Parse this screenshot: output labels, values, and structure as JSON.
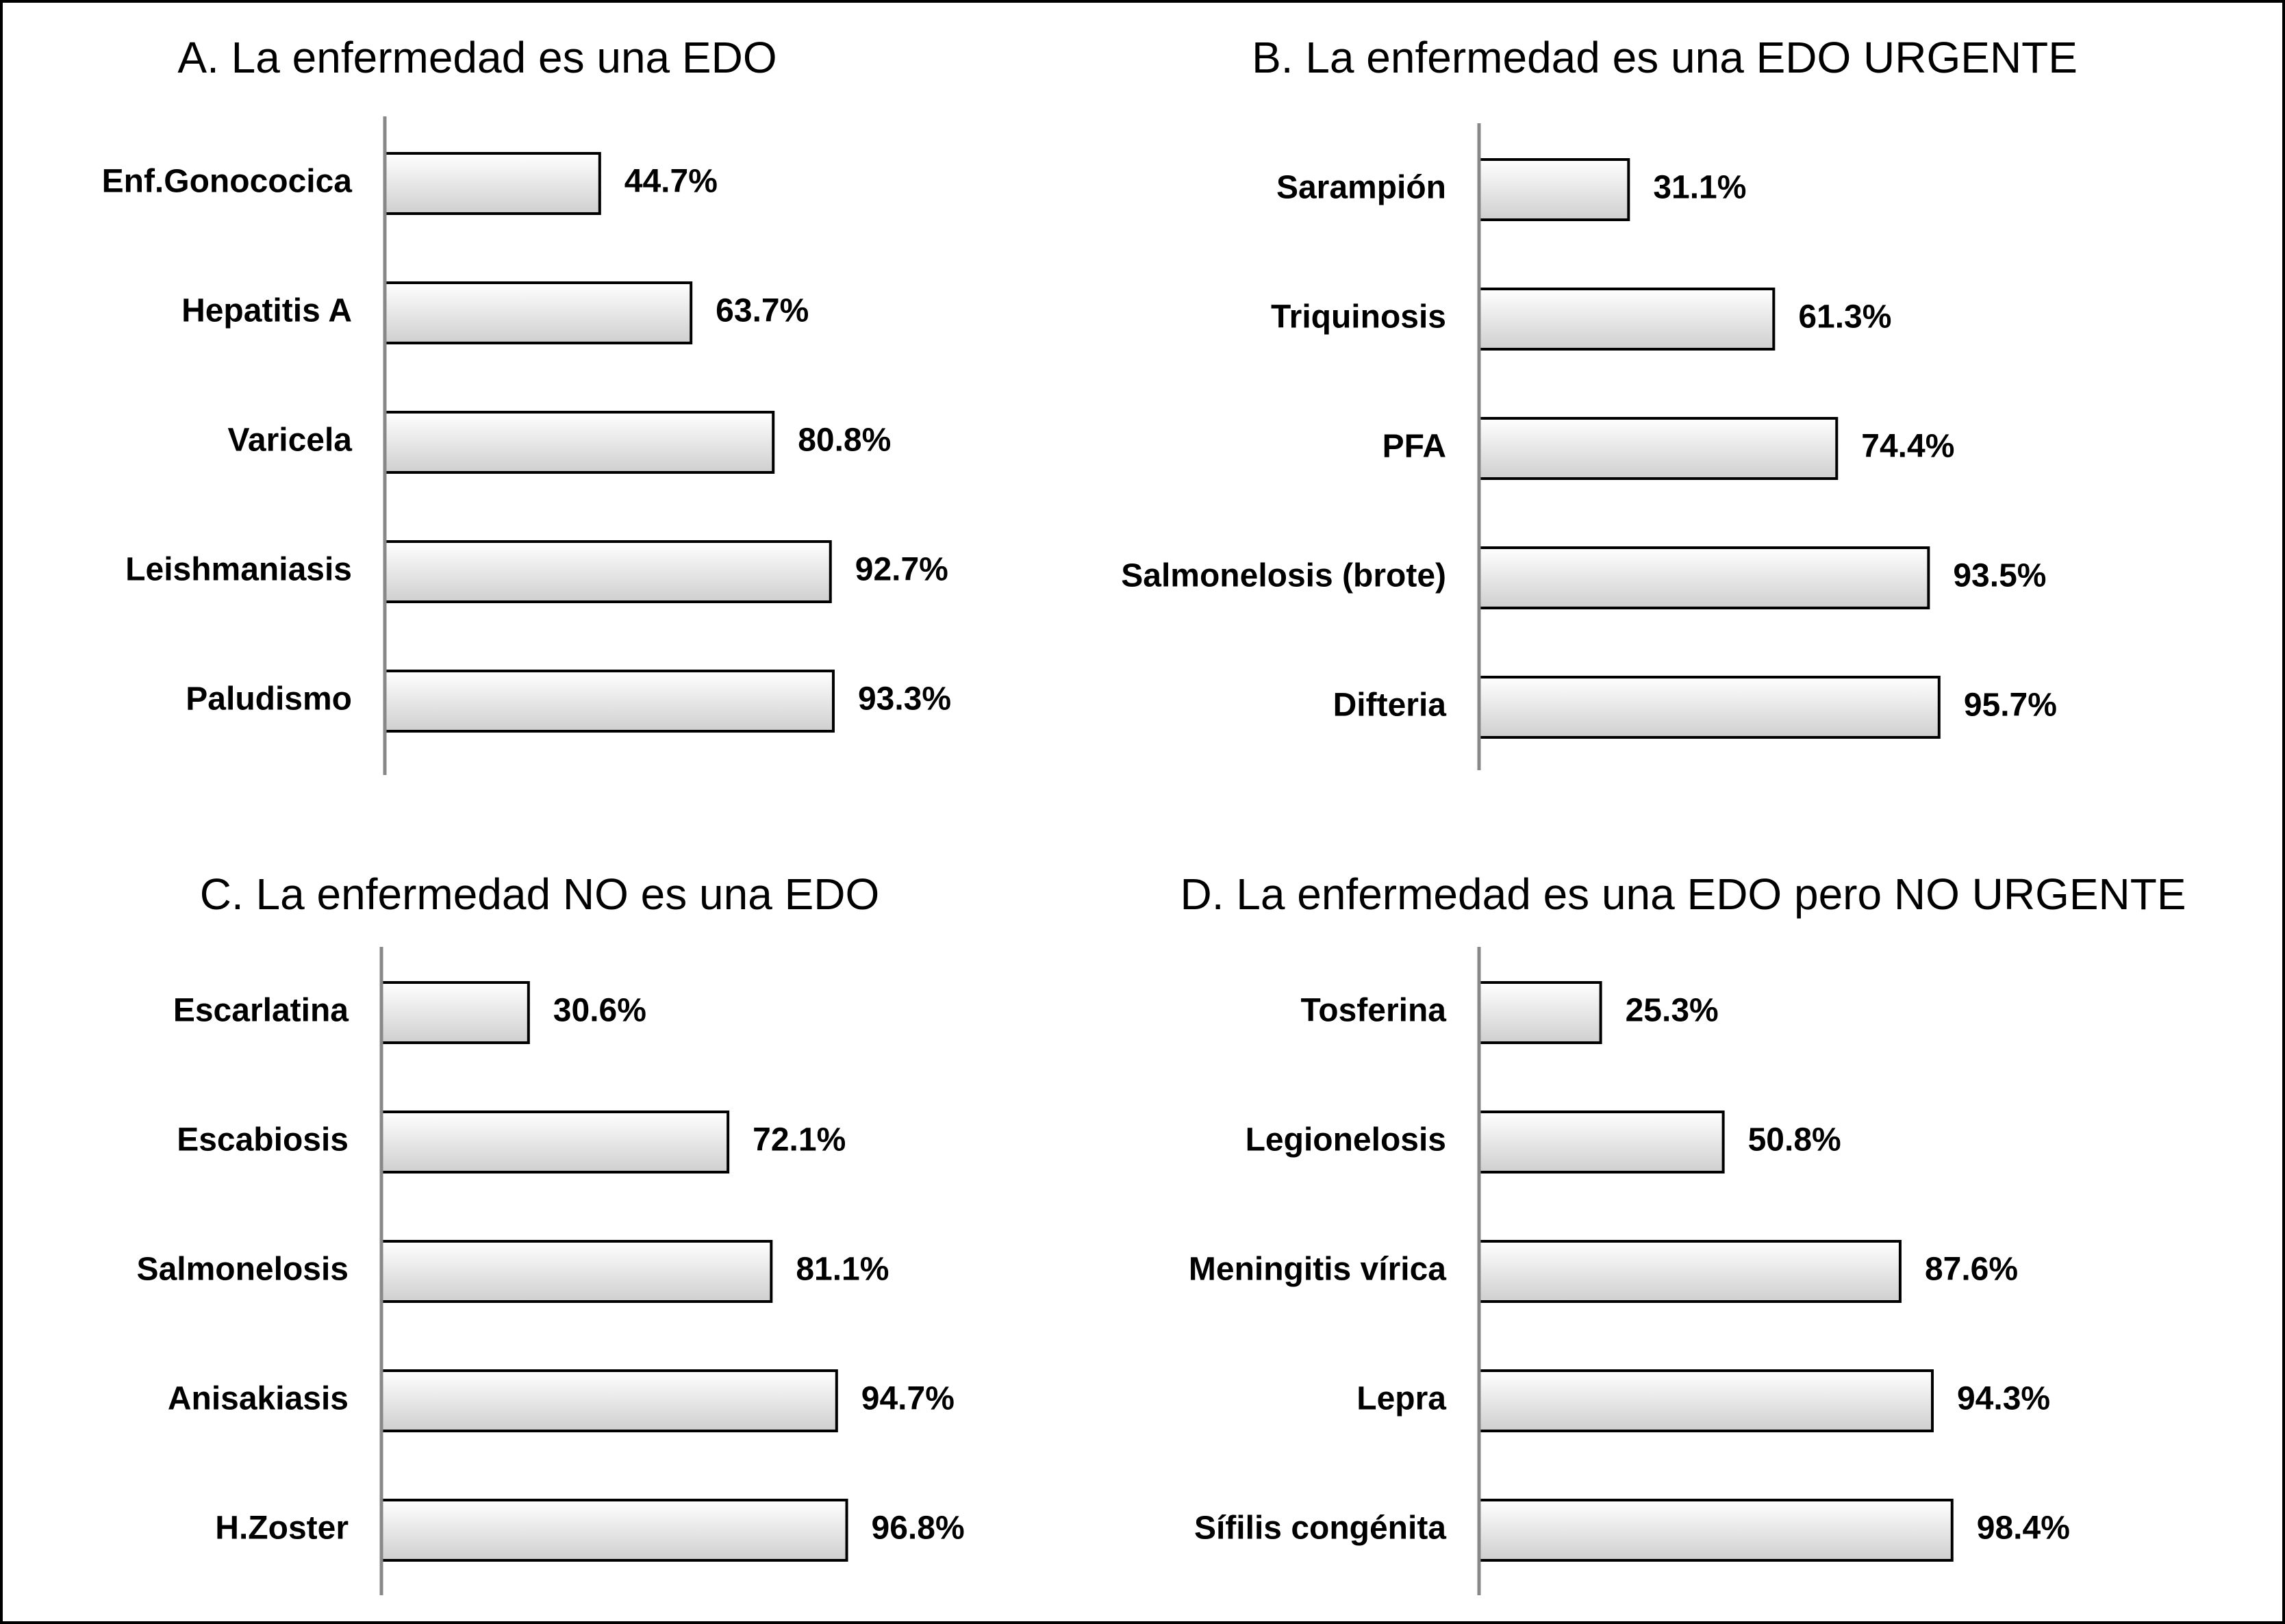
{
  "chart_data": [
    {
      "type": "bar",
      "title": "A. La enfermedad es una EDO",
      "categories": [
        "Enf.Gonococica",
        "Hepatitis A",
        "Varicela",
        "Leishmaniasis",
        "Paludismo"
      ],
      "values": [
        44.7,
        63.7,
        80.8,
        92.7,
        93.3
      ],
      "value_labels": [
        "44.7%",
        "63.7%",
        "80.8%",
        "92.7%",
        "93.3%"
      ],
      "xlim": [
        0,
        100
      ],
      "color": "#e4e4e4"
    },
    {
      "type": "bar",
      "title": "B. La enfermedad es una EDO URGENTE",
      "categories": [
        "Sarampión",
        "Triquinosis",
        "PFA",
        "Salmonelosis (brote)",
        "Difteria"
      ],
      "values": [
        31.1,
        61.3,
        74.4,
        93.5,
        95.7
      ],
      "value_labels": [
        "31.1%",
        "61.3%",
        "74.4%",
        "93.5%",
        "95.7%"
      ],
      "xlim": [
        0,
        100
      ],
      "color": "#e4e4e4"
    },
    {
      "type": "bar",
      "title": "C. La enfermedad NO es una EDO",
      "categories": [
        "Escarlatina",
        "Escabiosis",
        "Salmonelosis",
        "Anisakiasis",
        "H.Zoster"
      ],
      "values": [
        30.6,
        72.1,
        81.1,
        94.7,
        96.8
      ],
      "value_labels": [
        "30.6%",
        "72.1%",
        "81.1%",
        "94.7%",
        "96.8%"
      ],
      "xlim": [
        0,
        100
      ],
      "color": "#e4e4e4"
    },
    {
      "type": "bar",
      "title": "D. La enfermedad es una EDO pero NO URGENTE",
      "categories": [
        "Tosferina",
        "Legionelosis",
        "Meningitis vírica",
        "Lepra",
        "Sífilis congénita"
      ],
      "values": [
        25.3,
        50.8,
        87.6,
        94.3,
        98.4
      ],
      "value_labels": [
        "25.3%",
        "50.8%",
        "87.6%",
        "94.3%",
        "98.4%"
      ],
      "xlim": [
        0,
        100
      ],
      "color": "#e4e4e4"
    }
  ]
}
